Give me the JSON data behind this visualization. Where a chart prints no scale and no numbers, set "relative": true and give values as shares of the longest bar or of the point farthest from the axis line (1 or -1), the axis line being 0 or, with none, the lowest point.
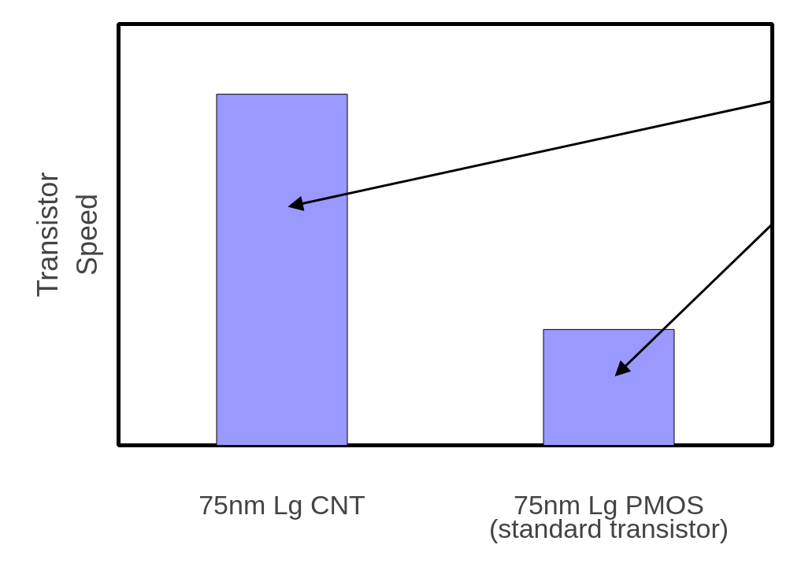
{
  "chart_data": {
    "type": "bar",
    "relative": true,
    "ylabel": "Transistor\nSpeed",
    "categories": [
      "75nm Lg CNT",
      "75nm Lg PMOS\n(standard transistor)"
    ],
    "values": [
      1,
      0.33
    ],
    "color": "#9999ff",
    "grid": false
  }
}
